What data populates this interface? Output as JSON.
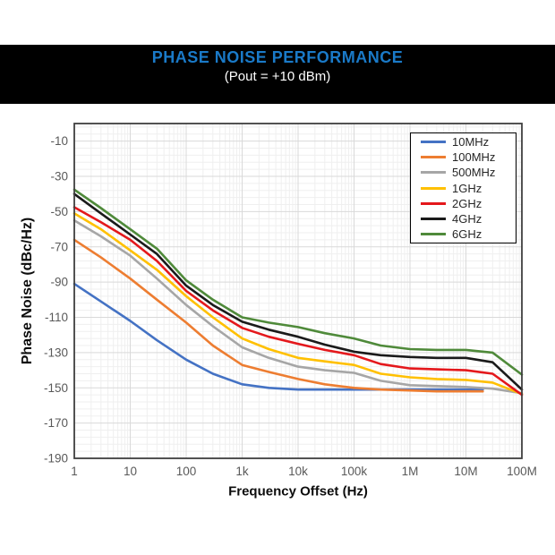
{
  "banner": {
    "title": "PHASE NOISE PERFORMANCE",
    "subtitle": "(Pout = +10 dBm)",
    "background": "#000000",
    "title_color": "#1A7AC8",
    "subtitle_color": "#FFFFFF"
  },
  "chart_data": {
    "type": "line",
    "title": "PHASE NOISE PERFORMANCE",
    "subtitle": "(Pout = +10 dBm)",
    "xlabel": "Frequency Offset (Hz)",
    "ylabel": "Phase Noise (dBc/Hz)",
    "x_scale": "log",
    "x_range_hz": [
      1,
      100000000
    ],
    "x_tick_labels": [
      "1",
      "10",
      "100",
      "1k",
      "10k",
      "100k",
      "1M",
      "10M",
      "100M"
    ],
    "y_range": [
      -190,
      0
    ],
    "y_tick_values": [
      -10,
      -30,
      -50,
      -70,
      -90,
      -110,
      -130,
      -150,
      -170,
      -190
    ],
    "grid": true,
    "minor_grid": true,
    "legend_position": "top-right",
    "style": {
      "border_color": "#3f3f3f",
      "major_grid_color": "#d9d9d9",
      "minor_grid_color": "#efefef",
      "tick_text_color": "#595959",
      "line_width": 2.6
    },
    "series": [
      {
        "name": "10MHz",
        "color": "#4472C4",
        "points": [
          [
            1,
            -91
          ],
          [
            3,
            -101
          ],
          [
            10,
            -112
          ],
          [
            30,
            -123
          ],
          [
            100,
            -134
          ],
          [
            300,
            -142
          ],
          [
            1000,
            -148
          ],
          [
            3000,
            -150
          ],
          [
            10000,
            -151
          ],
          [
            100000,
            -151
          ],
          [
            1000000,
            -151
          ],
          [
            10000000,
            -151
          ],
          [
            20000000,
            -151
          ]
        ]
      },
      {
        "name": "100MHz",
        "color": "#ED7D31",
        "points": [
          [
            1,
            -66
          ],
          [
            3,
            -76
          ],
          [
            10,
            -88
          ],
          [
            30,
            -100
          ],
          [
            100,
            -113
          ],
          [
            300,
            -126
          ],
          [
            1000,
            -137
          ],
          [
            3000,
            -141
          ],
          [
            10000,
            -145
          ],
          [
            30000,
            -148
          ],
          [
            100000,
            -150
          ],
          [
            300000,
            -151
          ],
          [
            1000000,
            -151.5
          ],
          [
            3000000,
            -152
          ],
          [
            10000000,
            -152
          ],
          [
            20000000,
            -152
          ]
        ]
      },
      {
        "name": "500MHz",
        "color": "#A6A6A6",
        "points": [
          [
            1,
            -55
          ],
          [
            3,
            -64
          ],
          [
            10,
            -75
          ],
          [
            30,
            -88
          ],
          [
            100,
            -103
          ],
          [
            300,
            -115
          ],
          [
            1000,
            -127
          ],
          [
            3000,
            -133
          ],
          [
            10000,
            -138
          ],
          [
            30000,
            -140
          ],
          [
            100000,
            -141.5
          ],
          [
            300000,
            -146
          ],
          [
            1000000,
            -148.5
          ],
          [
            3000000,
            -149
          ],
          [
            10000000,
            -149.5
          ],
          [
            30000000,
            -150.5
          ],
          [
            100000000,
            -153
          ]
        ]
      },
      {
        "name": "1GHz",
        "color": "#FFC000",
        "points": [
          [
            1,
            -51
          ],
          [
            3,
            -60
          ],
          [
            10,
            -72
          ],
          [
            30,
            -83
          ],
          [
            100,
            -98
          ],
          [
            300,
            -110
          ],
          [
            1000,
            -122
          ],
          [
            3000,
            -128
          ],
          [
            10000,
            -133
          ],
          [
            30000,
            -135
          ],
          [
            100000,
            -137
          ],
          [
            300000,
            -142
          ],
          [
            1000000,
            -144
          ],
          [
            3000000,
            -145
          ],
          [
            10000000,
            -145.5
          ],
          [
            30000000,
            -147
          ],
          [
            100000000,
            -153.5
          ]
        ]
      },
      {
        "name": "2GHz",
        "color": "#E4181C",
        "points": [
          [
            1,
            -47.5
          ],
          [
            3,
            -56
          ],
          [
            10,
            -66
          ],
          [
            30,
            -78
          ],
          [
            100,
            -95
          ],
          [
            300,
            -106
          ],
          [
            1000,
            -116
          ],
          [
            3000,
            -121
          ],
          [
            10000,
            -125
          ],
          [
            30000,
            -128.5
          ],
          [
            100000,
            -131.5
          ],
          [
            300000,
            -136.5
          ],
          [
            1000000,
            -139
          ],
          [
            3000000,
            -139.5
          ],
          [
            10000000,
            -140
          ],
          [
            30000000,
            -142
          ],
          [
            100000000,
            -154
          ]
        ]
      },
      {
        "name": "4GHz",
        "color": "#1A1A1A",
        "points": [
          [
            1,
            -40
          ],
          [
            3,
            -51
          ],
          [
            10,
            -63
          ],
          [
            30,
            -74
          ],
          [
            100,
            -92
          ],
          [
            300,
            -103
          ],
          [
            1000,
            -112.5
          ],
          [
            3000,
            -117
          ],
          [
            10000,
            -121
          ],
          [
            30000,
            -125.5
          ],
          [
            100000,
            -129.5
          ],
          [
            300000,
            -131.5
          ],
          [
            1000000,
            -132.5
          ],
          [
            3000000,
            -133
          ],
          [
            10000000,
            -133
          ],
          [
            30000000,
            -135.5
          ],
          [
            100000000,
            -151
          ]
        ]
      },
      {
        "name": "6GHz",
        "color": "#4F8A3A",
        "points": [
          [
            1,
            -37.5
          ],
          [
            3,
            -48
          ],
          [
            10,
            -60
          ],
          [
            30,
            -71
          ],
          [
            100,
            -89
          ],
          [
            300,
            -100
          ],
          [
            1000,
            -110
          ],
          [
            3000,
            -113
          ],
          [
            10000,
            -115.5
          ],
          [
            30000,
            -119
          ],
          [
            100000,
            -122
          ],
          [
            300000,
            -126
          ],
          [
            1000000,
            -128
          ],
          [
            3000000,
            -128.5
          ],
          [
            10000000,
            -128.5
          ],
          [
            30000000,
            -130
          ],
          [
            100000000,
            -142.5
          ]
        ]
      }
    ]
  }
}
